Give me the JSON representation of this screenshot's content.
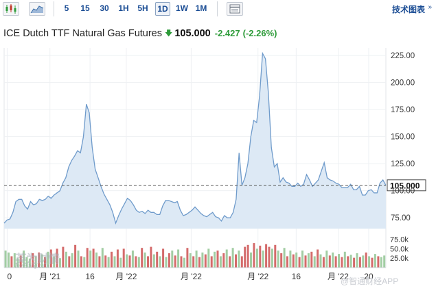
{
  "toolbar": {
    "periods": [
      "5",
      "15",
      "30",
      "1H",
      "5H",
      "1D",
      "1W",
      "1M"
    ],
    "active_period": "1D",
    "tech_chart_label": "技术图表",
    "tech_chart_chevron": "»"
  },
  "header": {
    "title": "ICE Dutch TTF Natural Gas Futures",
    "price": "105.000",
    "change": "-2.427",
    "change_pct": "(-2.26%)",
    "direction": "down"
  },
  "colors": {
    "line": "#6f9bcb",
    "area": "#dde9f5",
    "up_volume": "#a2cda3",
    "down_volume": "#d46b6b",
    "positive": "#2e9b3a",
    "link": "#1a4c94"
  },
  "watermark": "@智通财经APP",
  "logo_text": "英为财情",
  "logo_sub": "Investing.com",
  "chart_data": {
    "type": "area",
    "current_price_label": "105.000",
    "current_price": 105.0,
    "ylim": [
      65,
      232
    ],
    "y_ticks": [
      "75.00",
      "100.00",
      "125.00",
      "150.00",
      "175.00",
      "200.00",
      "225.00"
    ],
    "y_tick_values": [
      75,
      100,
      125,
      150,
      175,
      200,
      225
    ],
    "x_tick_labels": [
      "0",
      "月 '21",
      "16",
      "月 '22",
      "月 '22",
      "月 '22",
      "16",
      "月 '22",
      "20"
    ],
    "volume_ticks": [
      "75.0k",
      "50.0k",
      "25.0k"
    ],
    "volume_tick_values": [
      75000,
      50000,
      25000
    ],
    "volume_ylim": [
      0,
      85000
    ],
    "series": [
      {
        "values": [
          70,
          73,
          74,
          80,
          90,
          92,
          92,
          86,
          83,
          90,
          87,
          88,
          92,
          91,
          92,
          95,
          93,
          96,
          98,
          100,
          107,
          112,
          122,
          128,
          132,
          137,
          135,
          150,
          180,
          172,
          140,
          120,
          112,
          104,
          97,
          92,
          87,
          80,
          70,
          77,
          83,
          88,
          93,
          91,
          87,
          82,
          80,
          81,
          79,
          82,
          80,
          80,
          78,
          78,
          86,
          91,
          91,
          90,
          89,
          90,
          82,
          77,
          78,
          80,
          82,
          85,
          82,
          79,
          77,
          76,
          78,
          80,
          76,
          75,
          72,
          77,
          75,
          75,
          80,
          92,
          135,
          105,
          112,
          125,
          150,
          165,
          163,
          188,
          227,
          222,
          190,
          140,
          122,
          125,
          108,
          112,
          108,
          107,
          104,
          104,
          107,
          104,
          106,
          115,
          110,
          104,
          107,
          110,
          118,
          126,
          112,
          110,
          109,
          107,
          106,
          103,
          103,
          103,
          106,
          101,
          101,
          104,
          96,
          96,
          100,
          101,
          98,
          98,
          107,
          110,
          105
        ]
      }
    ],
    "volume": [
      {
        "value": 45000,
        "dir": "up"
      },
      {
        "value": 40000,
        "dir": "up"
      },
      {
        "value": 30000,
        "dir": "down"
      },
      {
        "value": 38000,
        "dir": "up"
      },
      {
        "value": 25000,
        "dir": "up"
      },
      {
        "value": 32000,
        "dir": "down"
      },
      {
        "value": 45000,
        "dir": "up"
      },
      {
        "value": 28000,
        "dir": "up"
      },
      {
        "value": 24000,
        "dir": "up"
      },
      {
        "value": 38000,
        "dir": "down"
      },
      {
        "value": 30000,
        "dir": "up"
      },
      {
        "value": 40000,
        "dir": "down"
      },
      {
        "value": 35000,
        "dir": "up"
      },
      {
        "value": 28000,
        "dir": "down"
      },
      {
        "value": 42000,
        "dir": "up"
      },
      {
        "value": 48000,
        "dir": "down"
      },
      {
        "value": 30000,
        "dir": "up"
      },
      {
        "value": 50000,
        "dir": "down"
      },
      {
        "value": 25000,
        "dir": "up"
      },
      {
        "value": 55000,
        "dir": "down"
      },
      {
        "value": 42000,
        "dir": "up"
      },
      {
        "value": 30000,
        "dir": "down"
      },
      {
        "value": 38000,
        "dir": "up"
      },
      {
        "value": 60000,
        "dir": "down"
      },
      {
        "value": 45000,
        "dir": "up"
      },
      {
        "value": 30000,
        "dir": "down"
      },
      {
        "value": 28000,
        "dir": "up"
      },
      {
        "value": 52000,
        "dir": "down"
      },
      {
        "value": 45000,
        "dir": "up"
      },
      {
        "value": 50000,
        "dir": "down"
      },
      {
        "value": 40000,
        "dir": "up"
      },
      {
        "value": 30000,
        "dir": "down"
      },
      {
        "value": 52000,
        "dir": "up"
      },
      {
        "value": 32000,
        "dir": "down"
      },
      {
        "value": 28000,
        "dir": "up"
      },
      {
        "value": 42000,
        "dir": "down"
      },
      {
        "value": 30000,
        "dir": "up"
      },
      {
        "value": 48000,
        "dir": "down"
      },
      {
        "value": 26000,
        "dir": "up"
      },
      {
        "value": 50000,
        "dir": "down"
      },
      {
        "value": 35000,
        "dir": "up"
      },
      {
        "value": 32000,
        "dir": "down"
      },
      {
        "value": 45000,
        "dir": "up"
      },
      {
        "value": 30000,
        "dir": "down"
      },
      {
        "value": 28000,
        "dir": "up"
      },
      {
        "value": 52000,
        "dir": "down"
      },
      {
        "value": 40000,
        "dir": "up"
      },
      {
        "value": 30000,
        "dir": "down"
      },
      {
        "value": 55000,
        "dir": "down"
      },
      {
        "value": 35000,
        "dir": "up"
      },
      {
        "value": 42000,
        "dir": "down"
      },
      {
        "value": 30000,
        "dir": "up"
      },
      {
        "value": 50000,
        "dir": "down"
      },
      {
        "value": 28000,
        "dir": "up"
      },
      {
        "value": 38000,
        "dir": "down"
      },
      {
        "value": 45000,
        "dir": "up"
      },
      {
        "value": 32000,
        "dir": "down"
      },
      {
        "value": 48000,
        "dir": "up"
      },
      {
        "value": 30000,
        "dir": "down"
      },
      {
        "value": 26000,
        "dir": "up"
      },
      {
        "value": 52000,
        "dir": "down"
      },
      {
        "value": 38000,
        "dir": "up"
      },
      {
        "value": 30000,
        "dir": "down"
      },
      {
        "value": 45000,
        "dir": "up"
      },
      {
        "value": 28000,
        "dir": "down"
      },
      {
        "value": 40000,
        "dir": "up"
      },
      {
        "value": 35000,
        "dir": "down"
      },
      {
        "value": 50000,
        "dir": "up"
      },
      {
        "value": 30000,
        "dir": "down"
      },
      {
        "value": 42000,
        "dir": "up"
      },
      {
        "value": 45000,
        "dir": "down"
      },
      {
        "value": 30000,
        "dir": "up"
      },
      {
        "value": 38000,
        "dir": "down"
      },
      {
        "value": 48000,
        "dir": "up"
      },
      {
        "value": 30000,
        "dir": "down"
      },
      {
        "value": 52000,
        "dir": "up"
      },
      {
        "value": 35000,
        "dir": "down"
      },
      {
        "value": 45000,
        "dir": "up"
      },
      {
        "value": 30000,
        "dir": "down"
      },
      {
        "value": 55000,
        "dir": "down"
      },
      {
        "value": 60000,
        "dir": "down"
      },
      {
        "value": 40000,
        "dir": "up"
      },
      {
        "value": 65000,
        "dir": "down"
      },
      {
        "value": 50000,
        "dir": "up"
      },
      {
        "value": 58000,
        "dir": "down"
      },
      {
        "value": 45000,
        "dir": "up"
      },
      {
        "value": 62000,
        "dir": "down"
      },
      {
        "value": 55000,
        "dir": "down"
      },
      {
        "value": 50000,
        "dir": "up"
      },
      {
        "value": 60000,
        "dir": "down"
      },
      {
        "value": 45000,
        "dir": "up"
      },
      {
        "value": 38000,
        "dir": "down"
      },
      {
        "value": 52000,
        "dir": "up"
      },
      {
        "value": 30000,
        "dir": "down"
      },
      {
        "value": 45000,
        "dir": "up"
      },
      {
        "value": 35000,
        "dir": "down"
      },
      {
        "value": 40000,
        "dir": "up"
      },
      {
        "value": 28000,
        "dir": "down"
      },
      {
        "value": 45000,
        "dir": "up"
      },
      {
        "value": 32000,
        "dir": "down"
      },
      {
        "value": 38000,
        "dir": "up"
      },
      {
        "value": 42000,
        "dir": "down"
      },
      {
        "value": 30000,
        "dir": "up"
      },
      {
        "value": 48000,
        "dir": "down"
      },
      {
        "value": 35000,
        "dir": "up"
      },
      {
        "value": 28000,
        "dir": "down"
      },
      {
        "value": 45000,
        "dir": "up"
      },
      {
        "value": 32000,
        "dir": "down"
      },
      {
        "value": 40000,
        "dir": "up"
      },
      {
        "value": 30000,
        "dir": "down"
      },
      {
        "value": 36000,
        "dir": "up"
      },
      {
        "value": 28000,
        "dir": "down"
      },
      {
        "value": 42000,
        "dir": "up"
      },
      {
        "value": 30000,
        "dir": "down"
      },
      {
        "value": 34000,
        "dir": "up"
      },
      {
        "value": 26000,
        "dir": "down"
      },
      {
        "value": 38000,
        "dir": "up"
      },
      {
        "value": 28000,
        "dir": "down"
      },
      {
        "value": 32000,
        "dir": "up"
      },
      {
        "value": 40000,
        "dir": "down"
      },
      {
        "value": 30000,
        "dir": "up"
      },
      {
        "value": 26000,
        "dir": "down"
      },
      {
        "value": 36000,
        "dir": "up"
      },
      {
        "value": 30000,
        "dir": "down"
      },
      {
        "value": 28000,
        "dir": "up"
      },
      {
        "value": 32000,
        "dir": "up"
      }
    ]
  }
}
